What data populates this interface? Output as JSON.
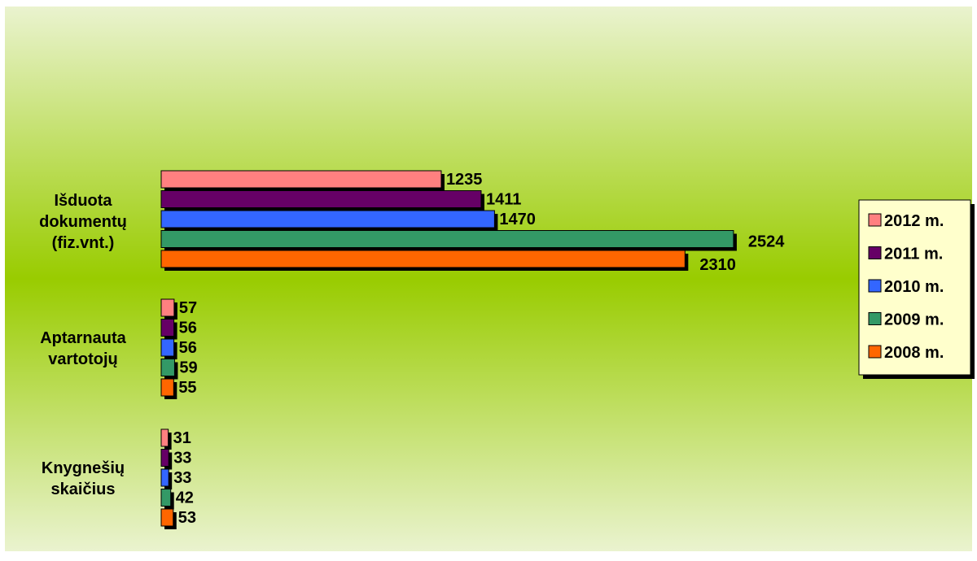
{
  "chart_data": {
    "type": "bar",
    "orientation": "horizontal",
    "title": "",
    "xlabel": "",
    "ylabel": "",
    "categories": [
      "Išduota dokumentų (fiz.vnt.)",
      "Aptarnauta vartotojų",
      "Knygnešių skaičius"
    ],
    "category_lines": [
      [
        "Išduota",
        "dokumentų",
        "(fiz.vnt.)"
      ],
      [
        "Aptarnauta",
        "vartotojų"
      ],
      [
        "Knygnešių",
        "skaičius"
      ]
    ],
    "series": [
      {
        "name": "2012 m.",
        "color": "#FF8080",
        "values": [
          1235,
          57,
          31
        ]
      },
      {
        "name": "2011 m.",
        "color": "#660066",
        "values": [
          1411,
          56,
          33
        ]
      },
      {
        "name": "2010 m.",
        "color": "#3366FF",
        "values": [
          1470,
          56,
          33
        ]
      },
      {
        "name": "2009 m.",
        "color": "#339966",
        "values": [
          2524,
          59,
          42
        ]
      },
      {
        "name": "2008 m.",
        "color": "#FF6600",
        "values": [
          2310,
          55,
          53
        ]
      }
    ],
    "xlim": [
      0,
      2700
    ],
    "grid": false,
    "legend": "right",
    "data_labels": true,
    "background": {
      "edge_color": "#EAF3CF",
      "center_color": "#99CC00"
    }
  }
}
